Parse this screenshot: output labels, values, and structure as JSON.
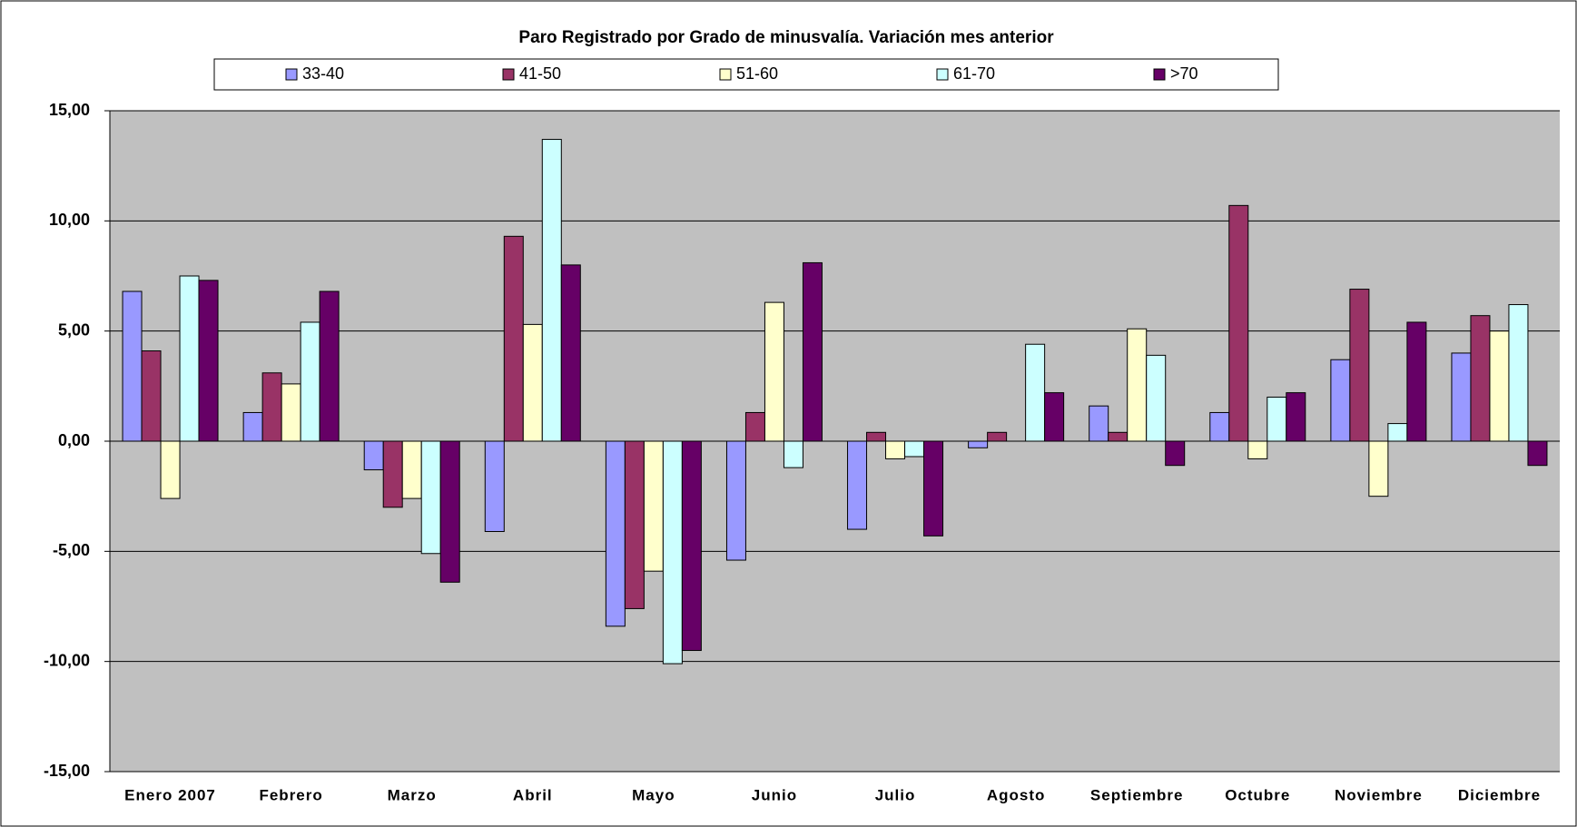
{
  "chart_data": {
    "type": "bar",
    "title": "Paro Registrado por Grado de minusvalía. Variación mes anterior",
    "categories": [
      "Enero 2007",
      "Febrero",
      "Marzo",
      "Abril",
      "Mayo",
      "Junio",
      "Julio",
      "Agosto",
      "Septiembre",
      "Octubre",
      "Noviembre",
      "Diciembre"
    ],
    "series": [
      {
        "name": "33-40",
        "color": "#9999ff",
        "values": [
          6.8,
          1.3,
          -1.3,
          -4.1,
          -8.4,
          -5.4,
          -4.0,
          -0.3,
          1.6,
          1.3,
          3.7,
          4.0
        ]
      },
      {
        "name": "41-50",
        "color": "#993366",
        "values": [
          4.1,
          3.1,
          -3.0,
          9.3,
          -7.6,
          1.3,
          0.4,
          0.4,
          0.4,
          10.7,
          6.9,
          5.7
        ]
      },
      {
        "name": "51-60",
        "color": "#ffffcc",
        "values": [
          -2.6,
          2.6,
          -2.6,
          5.3,
          -5.9,
          6.3,
          -0.8,
          0,
          5.1,
          -0.8,
          -2.5,
          5.0
        ]
      },
      {
        "name": "61-70",
        "color": "#ccffff",
        "values": [
          7.5,
          5.4,
          -5.1,
          13.7,
          -10.1,
          -1.2,
          -0.7,
          4.4,
          3.9,
          2.0,
          0.8,
          6.2
        ]
      },
      {
        "name": ">70",
        "color": "#660066",
        "values": [
          7.3,
          6.8,
          -6.4,
          8.0,
          -9.5,
          8.1,
          -4.3,
          2.2,
          -1.1,
          2.2,
          5.4,
          -1.1
        ]
      }
    ],
    "ylim": [
      -15,
      15
    ],
    "yticks": [
      {
        "value": -15,
        "label": "-15,00"
      },
      {
        "value": -10,
        "label": "-10,00"
      },
      {
        "value": -5,
        "label": "-5,00"
      },
      {
        "value": 0,
        "label": "0,00"
      },
      {
        "value": 5,
        "label": "5,00"
      },
      {
        "value": 10,
        "label": "10,00"
      },
      {
        "value": 15,
        "label": "15,00"
      }
    ],
    "grid": true,
    "legend": "top"
  }
}
